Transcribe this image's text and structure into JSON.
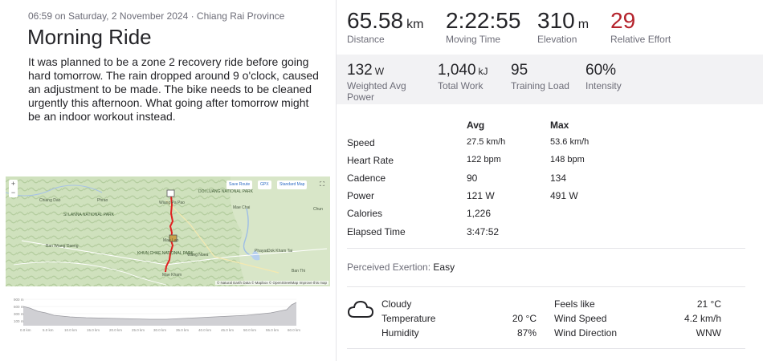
{
  "activity": {
    "meta": "06:59 on Saturday, 2 November 2024 · Chiang Rai Province",
    "title": "Morning Ride",
    "description": "It was planned to be a zone 2 recovery ride before going hard tomorrow. The rain dropped around 9 o'clock, caused an adjustment to be made. The bike needs to be cleaned urgently this afternoon. What going after tomorrow might be an indoor workout instead."
  },
  "map": {
    "controls": {
      "zoom_in": "+",
      "zoom_out": "−",
      "save_route": "Save Route",
      "gpx": "GPX",
      "style": "Standard Map",
      "fullscreen": "⛶"
    },
    "labels": [
      "Chiang Dao",
      "Phrao",
      "Wiang Pa Pao",
      "Mae Chai",
      "Chun",
      "Ban Wiang Daeng",
      "Mae Lao",
      "Phayao",
      "Dok Kham Tai",
      "Wang Nuea",
      "Ban Thi",
      "Mae Kham"
    ],
    "parks": [
      "SI LANNA NATIONAL PARK",
      "KHUN CHAE NATIONAL PARK",
      "DOI LUANG NATIONAL PARK"
    ],
    "attribution": "© Natural Earth Data © Mapbox © OpenStreetMap Improve this map",
    "route_color": "#e02020"
  },
  "elevation": {
    "y_ticks": [
      "100 m",
      "300 m",
      "600 m",
      "900 m"
    ],
    "x_ticks": [
      "0.0 km",
      "5.0 km",
      "10.0 km",
      "15.0 km",
      "20.0 km",
      "25.0 km",
      "30.0 km",
      "35.0 km",
      "40.0 km",
      "45.0 km",
      "50.0 km",
      "55.0 km",
      "60.0 km"
    ]
  },
  "summary": [
    {
      "value": "65.58",
      "unit": "km",
      "label": "Distance"
    },
    {
      "value": "2:22:55",
      "unit": "",
      "label": "Moving Time"
    },
    {
      "value": "310",
      "unit": "m",
      "label": "Elevation"
    },
    {
      "value": "29",
      "unit": "",
      "label": "Relative Effort"
    }
  ],
  "power_stats": [
    {
      "value": "132",
      "unit": "W",
      "label": "Weighted Avg Power"
    },
    {
      "value": "1,040",
      "unit": "kJ",
      "label": "Total Work"
    },
    {
      "value": "95",
      "unit": "",
      "label": "Training Load"
    },
    {
      "value": "60%",
      "unit": "",
      "label": "Intensity"
    }
  ],
  "table": {
    "headers": [
      "Avg",
      "Max"
    ],
    "rows": [
      {
        "label": "Speed",
        "avg": "27.5 km/h",
        "max": "53.6 km/h"
      },
      {
        "label": "Heart Rate",
        "avg": "122 bpm",
        "max": "148 bpm"
      },
      {
        "label": "Cadence",
        "avg": "90",
        "max": "134"
      },
      {
        "label": "Power",
        "avg": "121 W",
        "max": "491 W"
      },
      {
        "label": "Calories",
        "avg": "1,226",
        "max": ""
      },
      {
        "label": "Elapsed Time",
        "avg": "3:47:52",
        "max": ""
      }
    ]
  },
  "perceived_exertion": {
    "label": "Perceived Exertion:",
    "value": "Easy"
  },
  "weather": {
    "icon": "cloud-icon",
    "condition": "Cloudy",
    "temperature_label": "Temperature",
    "temperature": "20 °C",
    "humidity_label": "Humidity",
    "humidity": "87%",
    "feels_like_label": "Feels like",
    "feels_like": "21 °C",
    "wind_speed_label": "Wind Speed",
    "wind_speed": "4.2 km/h",
    "wind_direction_label": "Wind Direction",
    "wind_direction": "WNW"
  },
  "colors": {
    "relative_effort": "#b5242d",
    "band_bg": "#f2f2f4"
  }
}
